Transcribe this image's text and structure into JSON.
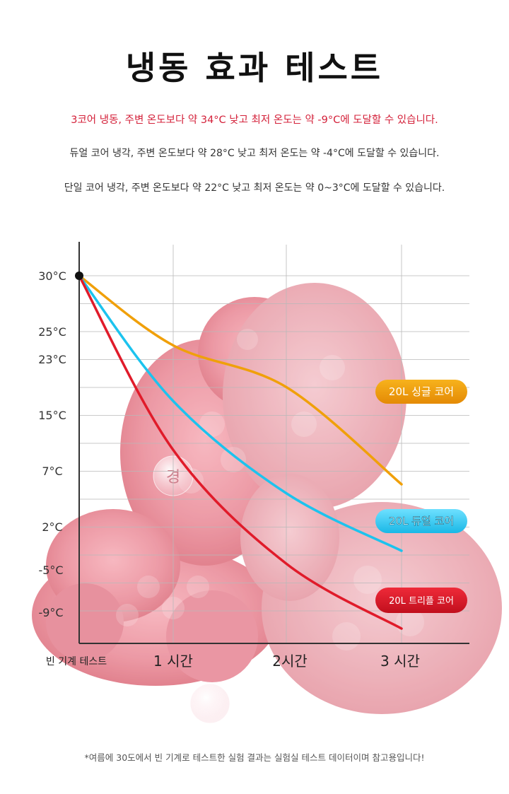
{
  "page": {
    "title": "냉동 효과 테스트",
    "descriptions": [
      "3코어 냉동, 주변 온도보다 약 34°C 낮고 최저 온도는 약 -9°C에 도달할 수 있습니다.",
      "듀얼 코어 냉각, 주변 온도보다 약 28°C 낮고 최저 온도는 약 -4°C에 도달할 수 있습니다.",
      "단일 코어 냉각, 주변 온도보다 약 22°C 낮고 최저 온도는 약 0~3°C에 도달할 수 있습니다."
    ],
    "footnote": "*여름에 30도에서 빈 기계로 테스트한 실험 결과는 실험실 테스트 데이터이며 참고용입니다!",
    "background_badge_text": "경"
  },
  "colors": {
    "single": "#f0a00a",
    "dual": "#1cc3ee",
    "triple": "#e01b2a",
    "grid": "#b9b9b9",
    "axis": "#333333",
    "desc_highlight": "#d4213a"
  },
  "chart_data": {
    "type": "line",
    "title": "",
    "xlabel": "",
    "ylabel": "",
    "categories": [
      "빈 기계 테스트",
      "1 시간",
      "2시간",
      "3 시간"
    ],
    "x": [
      0,
      1,
      2,
      3
    ],
    "ylim": [
      -12,
      35
    ],
    "y_tick_labels": [
      "30°C",
      "25°C",
      "23°C",
      "15°C",
      "7°C",
      "2°C",
      "-5°C",
      "-9°C"
    ],
    "grid": true,
    "series": [
      {
        "name": "20L 싱글 코어",
        "color": "#f0a00a",
        "values": [
          30,
          24,
          19,
          6
        ]
      },
      {
        "name": "20L 듀얼 코어",
        "color": "#1cc3ee",
        "values": [
          30,
          17,
          5,
          -1
        ]
      },
      {
        "name": "20L 트리플 코어",
        "color": "#e01b2a",
        "values": [
          30,
          10,
          -4,
          -9
        ]
      }
    ]
  }
}
